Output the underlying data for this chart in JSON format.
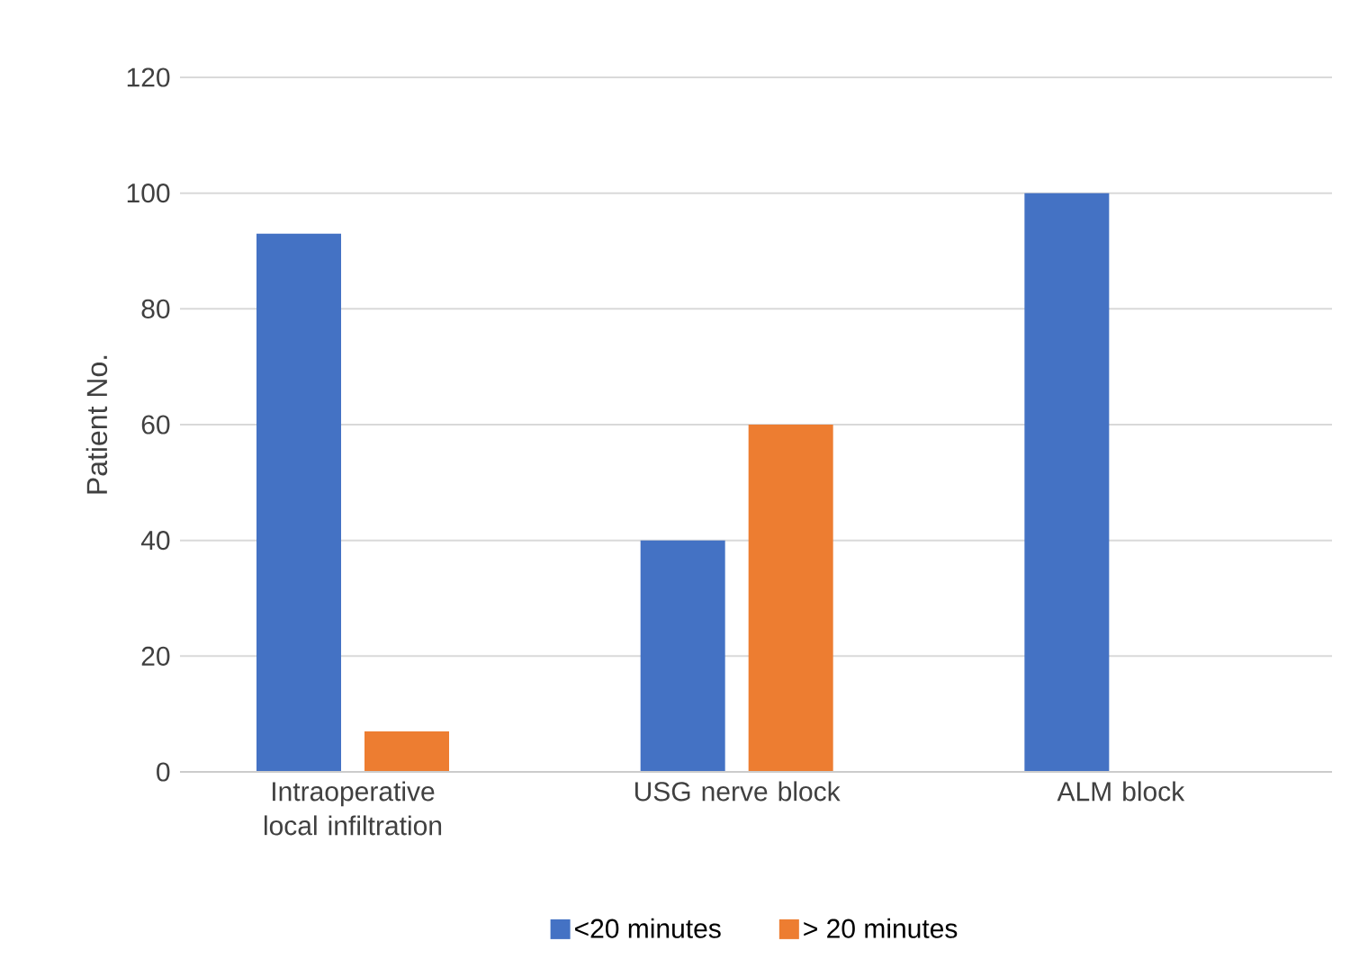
{
  "chart_data": {
    "type": "bar",
    "ylabel": "Patient No.",
    "categories": [
      "Intraoperative local infiltration",
      "USG nerve block",
      "ALM block"
    ],
    "series": [
      {
        "name": "<20 minutes",
        "color": "#4472c4",
        "values": [
          93,
          40,
          100
        ]
      },
      {
        "name": "> 20 minutes",
        "color": "#ed7d31",
        "values": [
          7,
          60,
          0
        ]
      }
    ],
    "ylim": [
      0,
      120
    ],
    "yticks": [
      0,
      20,
      40,
      60,
      80,
      100,
      120
    ],
    "grid": "y",
    "legend": "bottom"
  }
}
